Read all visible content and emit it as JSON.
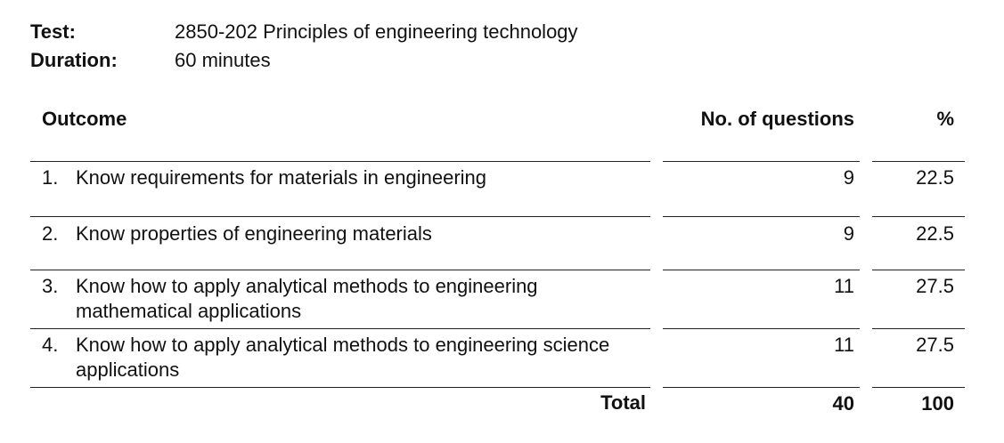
{
  "header": {
    "test_label": "Test:",
    "test_value": "2850-202 Principles of engineering technology",
    "duration_label": "Duration:",
    "duration_value": "60 minutes"
  },
  "table": {
    "columns": {
      "outcome": "Outcome",
      "num_questions": "No. of questions",
      "percent": "%"
    },
    "rows": [
      {
        "num": "1.",
        "outcome": "Know requirements for materials in engineering",
        "questions": "9",
        "percent": "22.5"
      },
      {
        "num": "2.",
        "outcome": "Know properties of engineering materials",
        "questions": "9",
        "percent": "22.5"
      },
      {
        "num": "3.",
        "outcome": "Know how to apply analytical methods to engineering mathematical applications",
        "questions": "11",
        "percent": "27.5"
      },
      {
        "num": "4.",
        "outcome": "Know how to apply analytical methods to engineering science applications",
        "questions": "11",
        "percent": "27.5"
      }
    ],
    "total": {
      "label": "Total",
      "questions": "40",
      "percent": "100"
    }
  }
}
